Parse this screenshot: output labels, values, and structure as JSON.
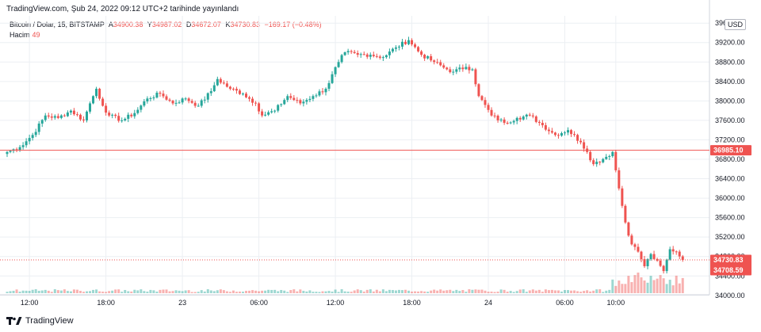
{
  "header": {
    "source": "TradingView.com, Şub 24, 2022 09:12 UTC+2 tarihinde yayınlandı"
  },
  "legend": {
    "symbol": "Bitcoin / Dolar, 15, BITSTAMP",
    "open_label": "A",
    "open": "34900.38",
    "high_label": "Y",
    "high": "34987.02",
    "low_label": "D",
    "low": "34672.07",
    "close_label": "K",
    "close": "34730.83",
    "change": "−169.17 (−0.48%)",
    "volume_label": "Hacim",
    "volume": "49"
  },
  "currency": "USD",
  "footer": {
    "brand": "TradingView"
  },
  "colors": {
    "up": "#26a69a",
    "down": "#ef5350",
    "line": "#ef5350",
    "grid": "#eceff3",
    "text": "#131722"
  },
  "chart_data": {
    "type": "candlestick",
    "symbol": "Bitcoin / Dolar",
    "interval": "15",
    "exchange": "BITSTAMP",
    "y_ticks": [
      34000,
      34400,
      34800,
      35200,
      35600,
      36000,
      36400,
      36800,
      37200,
      37600,
      38000,
      38400,
      38800,
      39200,
      39600
    ],
    "y_tick_labels": [
      "34000.00",
      "34400.00",
      "34800.00",
      "35200.00",
      "35600.00",
      "36000.00",
      "36400.00",
      "36800.00",
      "37200.00",
      "37600.00",
      "38000.00",
      "38400.00",
      "38800.00",
      "39200.00",
      "39600.00"
    ],
    "ylim": [
      33850,
      39750
    ],
    "x_ticks": [
      {
        "label": "12:00",
        "idx": 7
      },
      {
        "label": "18:00",
        "idx": 31
      },
      {
        "label": "23",
        "idx": 55
      },
      {
        "label": "06:00",
        "idx": 79
      },
      {
        "label": "12:00",
        "idx": 103
      },
      {
        "label": "18:00",
        "idx": 127
      },
      {
        "label": "24",
        "idx": 151
      },
      {
        "label": "06:00",
        "idx": 175
      },
      {
        "label": "10:00",
        "idx": 191
      }
    ],
    "horizontal_line": {
      "value": 36985.1,
      "label": "36985.10"
    },
    "last_price": {
      "value": 34730.83,
      "label": "34730.83",
      "label2": "34708.59"
    },
    "key_closes": [
      [
        0,
        36950
      ],
      [
        4,
        37050
      ],
      [
        8,
        37300
      ],
      [
        12,
        37700
      ],
      [
        16,
        37650
      ],
      [
        20,
        37800
      ],
      [
        24,
        37600
      ],
      [
        26,
        37950
      ],
      [
        28,
        38250
      ],
      [
        30,
        37900
      ],
      [
        32,
        37700
      ],
      [
        36,
        37600
      ],
      [
        40,
        37750
      ],
      [
        44,
        38050
      ],
      [
        48,
        38150
      ],
      [
        52,
        37950
      ],
      [
        56,
        38050
      ],
      [
        60,
        37900
      ],
      [
        64,
        38200
      ],
      [
        66,
        38450
      ],
      [
        70,
        38250
      ],
      [
        74,
        38150
      ],
      [
        78,
        37950
      ],
      [
        80,
        37700
      ],
      [
        84,
        37800
      ],
      [
        88,
        38100
      ],
      [
        92,
        37950
      ],
      [
        96,
        38100
      ],
      [
        100,
        38250
      ],
      [
        104,
        38800
      ],
      [
        106,
        39000
      ],
      [
        110,
        38950
      ],
      [
        114,
        38950
      ],
      [
        118,
        38900
      ],
      [
        122,
        39100
      ],
      [
        126,
        39250
      ],
      [
        130,
        38950
      ],
      [
        134,
        38800
      ],
      [
        138,
        38650
      ],
      [
        140,
        38600
      ],
      [
        144,
        38700
      ],
      [
        146,
        38650
      ],
      [
        148,
        38100
      ],
      [
        152,
        37700
      ],
      [
        156,
        37550
      ],
      [
        160,
        37650
      ],
      [
        164,
        37700
      ],
      [
        168,
        37500
      ],
      [
        172,
        37300
      ],
      [
        176,
        37400
      ],
      [
        180,
        37150
      ],
      [
        182,
        36950
      ],
      [
        184,
        36700
      ],
      [
        188,
        36850
      ],
      [
        190,
        36950
      ],
      [
        192,
        36200
      ],
      [
        194,
        35500
      ],
      [
        196,
        35050
      ],
      [
        198,
        34900
      ],
      [
        200,
        34600
      ],
      [
        202,
        34850
      ],
      [
        206,
        34500
      ],
      [
        208,
        34950
      ],
      [
        210,
        34900
      ],
      [
        212,
        34730
      ]
    ]
  }
}
